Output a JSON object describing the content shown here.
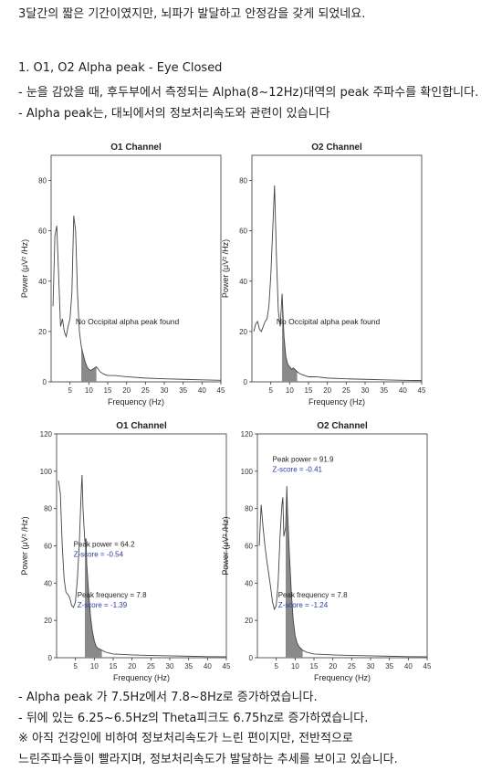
{
  "text": {
    "intro": "3달간의 짧은 기간이였지만, 뇌파가 발달하고 안정감을 갖게 되었네요.",
    "section_title": "1. O1, O2 Alpha peak - Eye Closed",
    "desc1": "- 눈을 감았을 때, 후두부에서 측정되는 Alpha(8~12Hz)대역의 peak 주파수를 확인합니다.",
    "desc2": "- Alpha peak는, 대뇌에서의 정보처리속도와 관련이 있습니다",
    "summary1": "- Alpha peak 가 7.5Hz에서 7.8~8Hz로 증가하였습니다.",
    "summary2": "- 뒤에 있는 6.25~6.5Hz의 Theta피크도 6.75hz로 증가하였습니다.",
    "note1": "※ 아직 건강인에 비하여 정보처리속도가 느린 편이지만,  전반적으로",
    "note2": "느린주파수들이 빨라지며, 정보처리속도가 발달하는 추세를 보이고 있습니다."
  },
  "chart_data": [
    {
      "type": "line",
      "title": "O1 Channel",
      "xlabel": "Frequency (Hz)",
      "ylabel": "Power (μV² /Hz)",
      "xlim": [
        0,
        45
      ],
      "ylim": [
        0,
        90
      ],
      "xticks": [
        5,
        10,
        15,
        20,
        25,
        30,
        35,
        40,
        45
      ],
      "yticks": [
        0,
        20,
        40,
        60,
        80
      ],
      "shade_range": [
        8,
        12
      ],
      "annotations": [
        "No Occipital alpha peak found"
      ],
      "x": [
        0.5,
        1,
        1.5,
        2,
        2.5,
        3,
        3.5,
        4,
        4.5,
        5,
        5.5,
        6,
        6.5,
        7,
        7.5,
        8,
        8.5,
        9,
        9.5,
        10,
        10.5,
        11,
        12,
        13,
        14,
        15,
        17,
        20,
        25,
        30,
        35,
        40,
        45
      ],
      "y": [
        30,
        58,
        62,
        42,
        22,
        25,
        20,
        18,
        22,
        25,
        35,
        66,
        60,
        35,
        20,
        14,
        11,
        8,
        6,
        5,
        4.5,
        5,
        6,
        4,
        3,
        2.5,
        2.5,
        2,
        1.5,
        1.2,
        1,
        0.8,
        0.6
      ]
    },
    {
      "type": "line",
      "title": "O2 Channel",
      "xlabel": "Frequency (Hz)",
      "ylabel": "Power (μV² /Hz)",
      "xlim": [
        0,
        45
      ],
      "ylim": [
        0,
        90
      ],
      "xticks": [
        5,
        10,
        15,
        20,
        25,
        30,
        35,
        40,
        45
      ],
      "yticks": [
        0,
        20,
        40,
        60,
        80
      ],
      "shade_range": [
        8,
        12
      ],
      "annotations": [
        "No Occipital alpha peak found"
      ],
      "x": [
        0.5,
        1,
        1.5,
        2,
        2.5,
        3,
        3.5,
        4,
        4.5,
        5,
        5.5,
        6,
        6.5,
        7,
        7.5,
        8,
        8.5,
        9,
        9.5,
        10,
        10.5,
        11,
        12,
        13,
        14,
        15,
        17,
        20,
        25,
        30,
        35,
        40,
        45
      ],
      "y": [
        20,
        23,
        24,
        21,
        20,
        22,
        24,
        25,
        30,
        42,
        60,
        78,
        50,
        28,
        22,
        35,
        18,
        10,
        7,
        6,
        5,
        5.5,
        4,
        3,
        2.5,
        2,
        2,
        1.5,
        1.2,
        1,
        0.8,
        0.6,
        0.5
      ]
    },
    {
      "type": "line",
      "title": "O1 Channel",
      "xlabel": "Frequency (Hz)",
      "ylabel": "Power (μV² /Hz)",
      "xlim": [
        0,
        45
      ],
      "ylim": [
        0,
        120
      ],
      "xticks": [
        5,
        10,
        15,
        20,
        25,
        30,
        35,
        40,
        45
      ],
      "yticks": [
        0,
        20,
        40,
        60,
        80,
        100,
        120
      ],
      "shade_range": [
        7.5,
        12
      ],
      "peak_power": 64.2,
      "peak_power_z": -0.54,
      "peak_frequency": 7.8,
      "peak_frequency_z": -1.39,
      "annotations": [
        "Peak power = 64.2",
        "Z-score = -0.54",
        "Peak frequency = 7.8",
        "Z-score = -1.39"
      ],
      "x": [
        0.5,
        1,
        1.5,
        2,
        2.5,
        3,
        3.5,
        4,
        4.5,
        5,
        5.5,
        6,
        6.5,
        6.75,
        7,
        7.5,
        7.8,
        8,
        8.5,
        9,
        9.5,
        10,
        10.5,
        11,
        12,
        13,
        14,
        15,
        17,
        20,
        25,
        30,
        35,
        40,
        45
      ],
      "y": [
        95,
        88,
        60,
        42,
        35,
        34,
        32,
        28,
        27,
        30,
        42,
        60,
        88,
        98,
        80,
        62,
        64,
        50,
        35,
        22,
        14,
        9,
        6,
        5,
        4,
        3,
        2.5,
        2,
        1.8,
        1.5,
        1.2,
        1,
        0.8,
        0.6,
        0.5
      ]
    },
    {
      "type": "line",
      "title": "O2 Channel",
      "xlabel": "Frequency (Hz)",
      "ylabel": "Power (μV² /Hz)",
      "xlim": [
        0,
        45
      ],
      "ylim": [
        0,
        120
      ],
      "xticks": [
        5,
        10,
        15,
        20,
        25,
        30,
        35,
        40,
        45
      ],
      "yticks": [
        0,
        20,
        40,
        60,
        80,
        100,
        120
      ],
      "shade_range": [
        7.5,
        12
      ],
      "peak_power": 91.9,
      "peak_power_z": -0.41,
      "peak_frequency": 7.8,
      "peak_frequency_z": -1.24,
      "annotations": [
        "Peak power = 91.9",
        "Z-score = -0.41",
        "Peak frequency = 7.8",
        "Z-score = -1.24"
      ],
      "x": [
        0.5,
        1,
        1.5,
        2,
        2.5,
        3,
        3.5,
        4,
        4.5,
        5,
        5.5,
        6,
        6.5,
        6.75,
        7,
        7.5,
        7.8,
        8,
        8.5,
        9,
        9.5,
        10,
        10.5,
        11,
        12,
        13,
        14,
        15,
        17,
        20,
        25,
        30,
        35,
        40,
        45
      ],
      "y": [
        60,
        82,
        70,
        60,
        52,
        45,
        38,
        30,
        26,
        28,
        40,
        65,
        82,
        86,
        65,
        70,
        92,
        78,
        55,
        35,
        20,
        12,
        8,
        6,
        4,
        3,
        2.5,
        2,
        1.8,
        1.5,
        1.2,
        1,
        0.8,
        0.6,
        0.5
      ]
    }
  ]
}
